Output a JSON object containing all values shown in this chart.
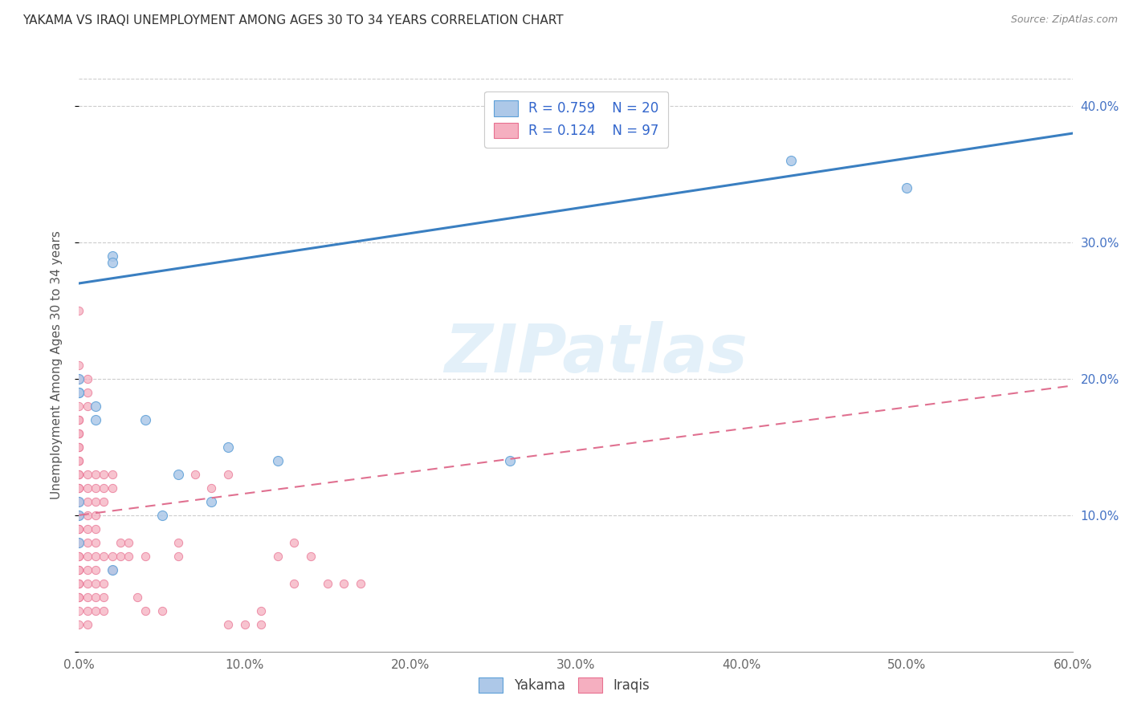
{
  "title": "YAKAMA VS IRAQI UNEMPLOYMENT AMONG AGES 30 TO 34 YEARS CORRELATION CHART",
  "source": "Source: ZipAtlas.com",
  "ylabel": "Unemployment Among Ages 30 to 34 years",
  "xlim": [
    0.0,
    0.6
  ],
  "ylim": [
    0.0,
    0.42
  ],
  "xticks": [
    0.0,
    0.1,
    0.2,
    0.3,
    0.4,
    0.5,
    0.6
  ],
  "xticklabels": [
    "0.0%",
    "10.0%",
    "20.0%",
    "30.0%",
    "40.0%",
    "50.0%",
    "60.0%"
  ],
  "yticks_right": [
    0.1,
    0.2,
    0.3,
    0.4
  ],
  "yticklabels_right": [
    "10.0%",
    "20.0%",
    "30.0%",
    "40.0%"
  ],
  "watermark": "ZIPatlas",
  "legend_R1": "R = 0.759",
  "legend_N1": "N = 20",
  "legend_R2": "R = 0.124",
  "legend_N2": "N = 97",
  "yakama_color": "#adc8e8",
  "iraqi_color": "#f5afc0",
  "yakama_edge": "#5da0d8",
  "iraqi_edge": "#e87090",
  "line_yakama_color": "#3a7fc1",
  "line_iraqi_color": "#e07090",
  "yakama_scatter": [
    [
      0.0,
      0.1
    ],
    [
      0.0,
      0.08
    ],
    [
      0.0,
      0.19
    ],
    [
      0.0,
      0.2
    ],
    [
      0.0,
      0.19
    ],
    [
      0.0,
      0.11
    ],
    [
      0.01,
      0.17
    ],
    [
      0.01,
      0.18
    ],
    [
      0.02,
      0.06
    ],
    [
      0.02,
      0.29
    ],
    [
      0.02,
      0.285
    ],
    [
      0.04,
      0.17
    ],
    [
      0.05,
      0.1
    ],
    [
      0.06,
      0.13
    ],
    [
      0.08,
      0.11
    ],
    [
      0.09,
      0.15
    ],
    [
      0.12,
      0.14
    ],
    [
      0.26,
      0.14
    ],
    [
      0.43,
      0.36
    ],
    [
      0.5,
      0.34
    ]
  ],
  "iraqi_scatter": [
    [
      0.0,
      0.25
    ],
    [
      0.0,
      0.21
    ],
    [
      0.0,
      0.2
    ],
    [
      0.0,
      0.19
    ],
    [
      0.0,
      0.19
    ],
    [
      0.0,
      0.18
    ],
    [
      0.0,
      0.17
    ],
    [
      0.0,
      0.17
    ],
    [
      0.0,
      0.16
    ],
    [
      0.0,
      0.16
    ],
    [
      0.0,
      0.15
    ],
    [
      0.0,
      0.15
    ],
    [
      0.0,
      0.14
    ],
    [
      0.0,
      0.14
    ],
    [
      0.0,
      0.13
    ],
    [
      0.0,
      0.13
    ],
    [
      0.0,
      0.12
    ],
    [
      0.0,
      0.12
    ],
    [
      0.0,
      0.11
    ],
    [
      0.0,
      0.11
    ],
    [
      0.0,
      0.1
    ],
    [
      0.0,
      0.1
    ],
    [
      0.0,
      0.09
    ],
    [
      0.0,
      0.09
    ],
    [
      0.0,
      0.08
    ],
    [
      0.0,
      0.08
    ],
    [
      0.0,
      0.07
    ],
    [
      0.0,
      0.07
    ],
    [
      0.0,
      0.06
    ],
    [
      0.0,
      0.06
    ],
    [
      0.0,
      0.05
    ],
    [
      0.0,
      0.05
    ],
    [
      0.0,
      0.04
    ],
    [
      0.0,
      0.04
    ],
    [
      0.0,
      0.03
    ],
    [
      0.0,
      0.02
    ],
    [
      0.005,
      0.2
    ],
    [
      0.005,
      0.19
    ],
    [
      0.005,
      0.18
    ],
    [
      0.005,
      0.13
    ],
    [
      0.005,
      0.12
    ],
    [
      0.005,
      0.11
    ],
    [
      0.005,
      0.1
    ],
    [
      0.005,
      0.09
    ],
    [
      0.005,
      0.08
    ],
    [
      0.005,
      0.07
    ],
    [
      0.005,
      0.06
    ],
    [
      0.005,
      0.05
    ],
    [
      0.005,
      0.04
    ],
    [
      0.005,
      0.03
    ],
    [
      0.005,
      0.02
    ],
    [
      0.01,
      0.13
    ],
    [
      0.01,
      0.12
    ],
    [
      0.01,
      0.11
    ],
    [
      0.01,
      0.1
    ],
    [
      0.01,
      0.09
    ],
    [
      0.01,
      0.08
    ],
    [
      0.01,
      0.07
    ],
    [
      0.01,
      0.06
    ],
    [
      0.01,
      0.05
    ],
    [
      0.01,
      0.04
    ],
    [
      0.01,
      0.03
    ],
    [
      0.015,
      0.13
    ],
    [
      0.015,
      0.12
    ],
    [
      0.015,
      0.11
    ],
    [
      0.015,
      0.07
    ],
    [
      0.015,
      0.05
    ],
    [
      0.015,
      0.04
    ],
    [
      0.015,
      0.03
    ],
    [
      0.02,
      0.13
    ],
    [
      0.02,
      0.12
    ],
    [
      0.02,
      0.07
    ],
    [
      0.02,
      0.06
    ],
    [
      0.025,
      0.08
    ],
    [
      0.025,
      0.07
    ],
    [
      0.03,
      0.08
    ],
    [
      0.03,
      0.07
    ],
    [
      0.035,
      0.04
    ],
    [
      0.04,
      0.03
    ],
    [
      0.05,
      0.03
    ],
    [
      0.06,
      0.07
    ],
    [
      0.07,
      0.13
    ],
    [
      0.08,
      0.12
    ],
    [
      0.09,
      0.13
    ],
    [
      0.1,
      0.02
    ],
    [
      0.11,
      0.03
    ],
    [
      0.13,
      0.05
    ],
    [
      0.15,
      0.05
    ],
    [
      0.06,
      0.08
    ],
    [
      0.04,
      0.07
    ],
    [
      0.12,
      0.07
    ],
    [
      0.13,
      0.08
    ],
    [
      0.14,
      0.07
    ],
    [
      0.16,
      0.05
    ],
    [
      0.17,
      0.05
    ],
    [
      0.09,
      0.02
    ],
    [
      0.11,
      0.02
    ]
  ],
  "yakama_line_x": [
    0.0,
    0.6
  ],
  "yakama_line_y": [
    0.27,
    0.38
  ],
  "iraqi_line_x": [
    0.0,
    0.6
  ],
  "iraqi_line_y": [
    0.1,
    0.195
  ]
}
